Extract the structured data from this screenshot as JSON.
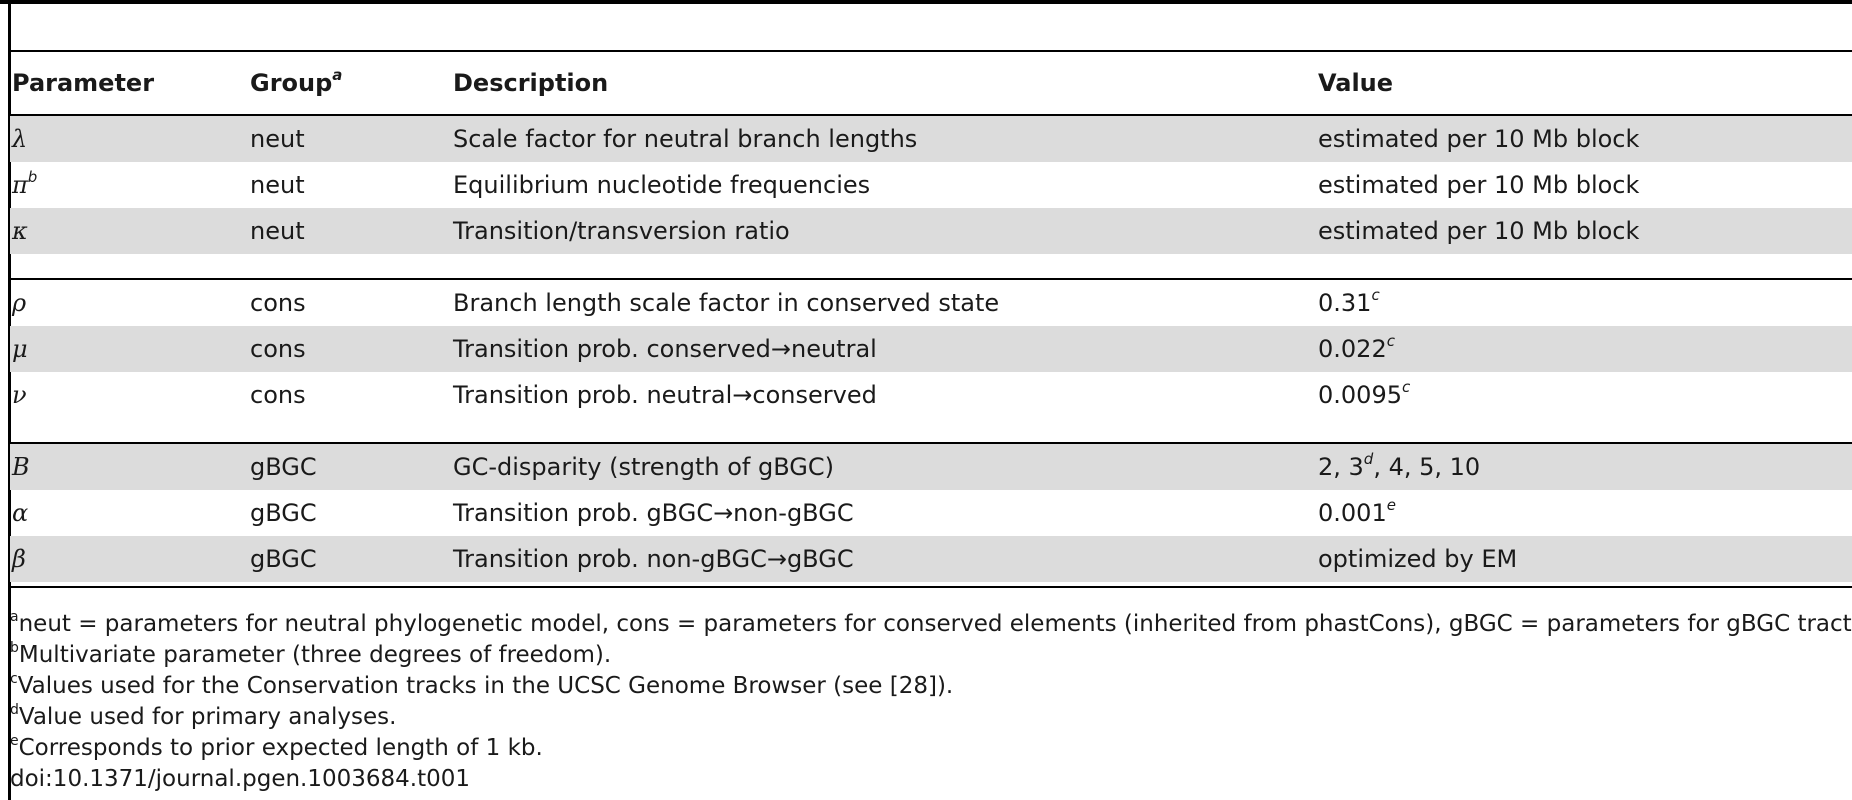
{
  "table": {
    "headers": {
      "parameter": "Parameter",
      "group": "Group",
      "group_sup": "a",
      "description": "Description",
      "value": "Value"
    },
    "rows": [
      {
        "param": "λ",
        "param_sup": "",
        "group": "neut",
        "desc": "Scale factor for neutral branch lengths",
        "value": "estimated per 10 Mb block",
        "value_sup": "",
        "value_tail": ""
      },
      {
        "param": "π",
        "param_sup": "b",
        "group": "neut",
        "desc": "Equilibrium nucleotide frequencies",
        "value": "estimated per 10 Mb block",
        "value_sup": "",
        "value_tail": ""
      },
      {
        "param": "κ",
        "param_sup": "",
        "group": "neut",
        "desc": "Transition/transversion ratio",
        "value": "estimated per 10 Mb block",
        "value_sup": "",
        "value_tail": ""
      },
      {
        "param": "ρ",
        "param_sup": "",
        "group": "cons",
        "desc": "Branch length scale factor in conserved state",
        "value": "0.31",
        "value_sup": "c",
        "value_tail": ""
      },
      {
        "param": "μ",
        "param_sup": "",
        "group": "cons",
        "desc": "Transition prob. conserved→neutral",
        "value": "0.022",
        "value_sup": "c",
        "value_tail": ""
      },
      {
        "param": "ν",
        "param_sup": "",
        "group": "cons",
        "desc": "Transition prob. neutral→conserved",
        "value": "0.0095",
        "value_sup": "c",
        "value_tail": ""
      },
      {
        "param": "B",
        "param_sup": "",
        "group": "gBGC",
        "desc": "GC-disparity (strength of gBGC)",
        "value": "2, 3",
        "value_sup": "d",
        "value_tail": ", 4, 5, 10"
      },
      {
        "param": "α",
        "param_sup": "",
        "group": "gBGC",
        "desc": "Transition prob. gBGC→non-gBGC",
        "value": "0.001",
        "value_sup": "e",
        "value_tail": ""
      },
      {
        "param": "β",
        "param_sup": "",
        "group": "gBGC",
        "desc": "Transition prob. non-gBGC→gBGC",
        "value": "optimized by EM",
        "value_sup": "",
        "value_tail": ""
      }
    ]
  },
  "footnotes": [
    {
      "mark": "a",
      "text": "neut = parameters for neutral phylogenetic model, cons = parameters for conserved elements (inherited from phastCons), gBGC = parameters for gBGC tracts."
    },
    {
      "mark": "b",
      "text": "Multivariate parameter (three degrees of freedom)."
    },
    {
      "mark": "c",
      "text": "Values used for the Conservation tracks in the UCSC Genome Browser (see [28])."
    },
    {
      "mark": "d",
      "text": "Value used for primary analyses."
    },
    {
      "mark": "e",
      "text": "Corresponds to prior expected length of 1 kb."
    }
  ],
  "doi": "doi:10.1371/journal.pgen.1003684.t001"
}
